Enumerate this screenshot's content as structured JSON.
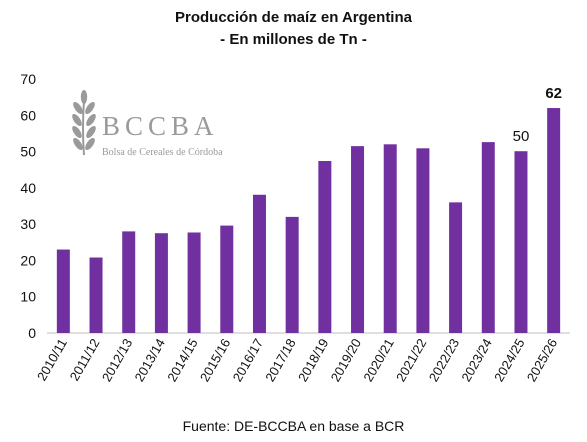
{
  "chart_data": {
    "type": "bar",
    "title": "Producción de maíz en Argentina",
    "subtitle": "- En millones de Tn -",
    "categories": [
      "2010/11",
      "2011/12",
      "2012/13",
      "2013/14",
      "2014/15",
      "2015/16",
      "2016/17",
      "2017/18",
      "2018/19",
      "2019/20",
      "2020/21",
      "2021/22",
      "2022/23",
      "2023/24",
      "2024/25",
      "2025/26"
    ],
    "values": [
      23,
      20.8,
      28,
      27.5,
      27.7,
      29.6,
      38.1,
      32,
      47.4,
      51.5,
      52,
      50.9,
      36,
      52.6,
      50.1,
      62
    ],
    "data_labels": [
      {
        "category": "2024/25",
        "text": "50",
        "bold": false
      },
      {
        "category": "2025/26",
        "text": "62",
        "bold": true
      }
    ],
    "ylim": [
      0,
      70
    ],
    "yticks": [
      0,
      10,
      20,
      30,
      40,
      50,
      60,
      70
    ],
    "grid": false,
    "bar_color": "#7030a0",
    "xlabel": "",
    "ylabel": ""
  },
  "logo": {
    "name": "BCCBA",
    "subtitle": "Bolsa de Cereales de Córdoba",
    "color": "#9a9a9a"
  },
  "source": "Fuente: DE-BCCBA en base a BCR"
}
